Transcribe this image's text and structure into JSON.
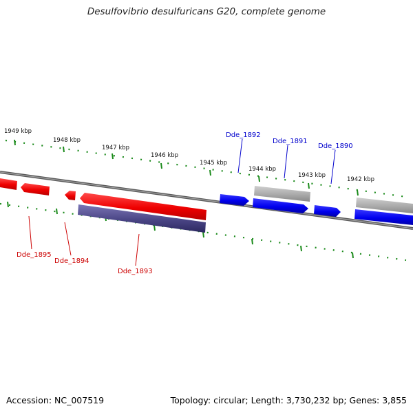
{
  "title": "Desulfovibrio desulfuricans G20, complete genome",
  "footer": {
    "accession": "Accession: NC_007519",
    "summary": "Topology: circular; Length: 3,730,232 bp; Genes: 3,855"
  },
  "colors": {
    "forward_gene": "#0000ee",
    "reverse_gene": "#ee0000",
    "rna_gene": "#4a4585",
    "pseudo_gene": "#aaaaaa",
    "ticks": "#1a8a1a",
    "backbone": "#777777"
  },
  "kbp_labels": [
    "1949 kbp",
    "1948 kbp",
    "1947 kbp",
    "1946 kbp",
    "1945 kbp",
    "1944 kbp",
    "1943 kbp",
    "1942 kbp"
  ],
  "gene_labels": {
    "forward": [
      "Dde_1892",
      "Dde_1891",
      "Dde_1890"
    ],
    "reverse": [
      "Dde_1895",
      "Dde_1894",
      "Dde_1893"
    ]
  }
}
